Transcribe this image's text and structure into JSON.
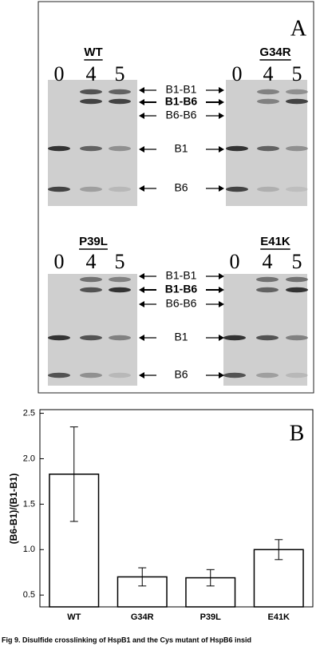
{
  "panel_a": {
    "label": "A",
    "gels": [
      {
        "name": "WT",
        "lanes": [
          "0",
          "4",
          "5"
        ]
      },
      {
        "name": "G34R",
        "lanes": [
          "0",
          "4",
          "5"
        ]
      },
      {
        "name": "P39L",
        "lanes": [
          "0",
          "4",
          "5"
        ]
      },
      {
        "name": "E41K",
        "lanes": [
          "0",
          "4",
          "5"
        ]
      }
    ],
    "band_labels": [
      [
        "B1-B1",
        "B1-B6",
        "B6-B6",
        "B1",
        "B6"
      ],
      [
        "B1-B1",
        "B1-B6",
        "B6-B6",
        "B1",
        "B6"
      ]
    ]
  },
  "chart_data": {
    "type": "bar",
    "panel_label": "B",
    "y_label": "(B6-B1)/(B1-B1)",
    "categories": [
      "WT",
      "G34R",
      "P39L",
      "E41K"
    ],
    "values": [
      1.83,
      0.7,
      0.69,
      1.0
    ],
    "errors": [
      0.52,
      0.1,
      0.09,
      0.11
    ],
    "color": "#ffffff",
    "ylim": [
      0.37,
      2.54
    ],
    "yticks": [
      {
        "value": 0.5,
        "label": "0.5"
      },
      {
        "value": 1.0,
        "label": "1.0"
      },
      {
        "value": 1.5,
        "label": "1.5"
      },
      {
        "value": 2.0,
        "label": "2.0"
      },
      {
        "value": 2.5,
        "label": "2.5"
      }
    ]
  },
  "caption": "Fig 9. Disulfide crosslinking of HspB1 and the Cys mutant of HspB6 insid"
}
